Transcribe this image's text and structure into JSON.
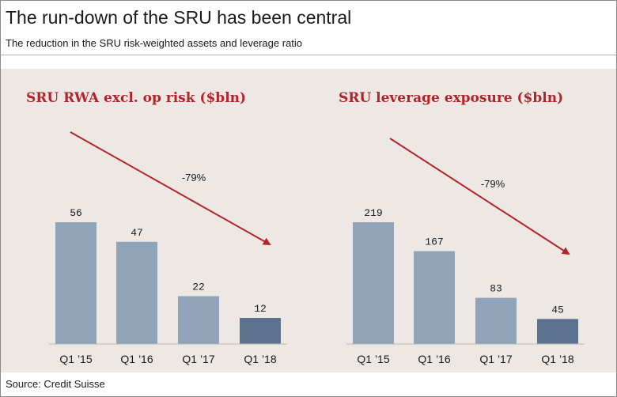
{
  "header": {
    "title": "The run-down of the SRU has been central",
    "subtitle": "The reduction in the SRU risk-weighted assets and leverage ratio"
  },
  "footer": {
    "source": "Source: Credit Suisse"
  },
  "colors": {
    "bar_light": "#8fa3b9",
    "bar_dark": "#5b718d",
    "accent": "#b2232a",
    "panel_bg": "#ede8e4"
  },
  "chart_data": [
    {
      "type": "bar",
      "title": "SRU RWA excl. op risk ($bln)",
      "categories": [
        "Q1 ’15",
        "Q1 ’16",
        "Q1 ’17",
        "Q1 ’18"
      ],
      "values": [
        56,
        47,
        22,
        12
      ],
      "annotation": "-79%",
      "ylim": [
        0,
        66
      ],
      "highlight_last": true
    },
    {
      "type": "bar",
      "title": "SRU leverage exposure ($bln)",
      "categories": [
        "Q1 ’15",
        "Q1 ’16",
        "Q1 ’17",
        "Q1 ’18"
      ],
      "values": [
        219,
        167,
        83,
        45
      ],
      "annotation": "-79%",
      "ylim": [
        0,
        256
      ],
      "highlight_last": true
    }
  ]
}
